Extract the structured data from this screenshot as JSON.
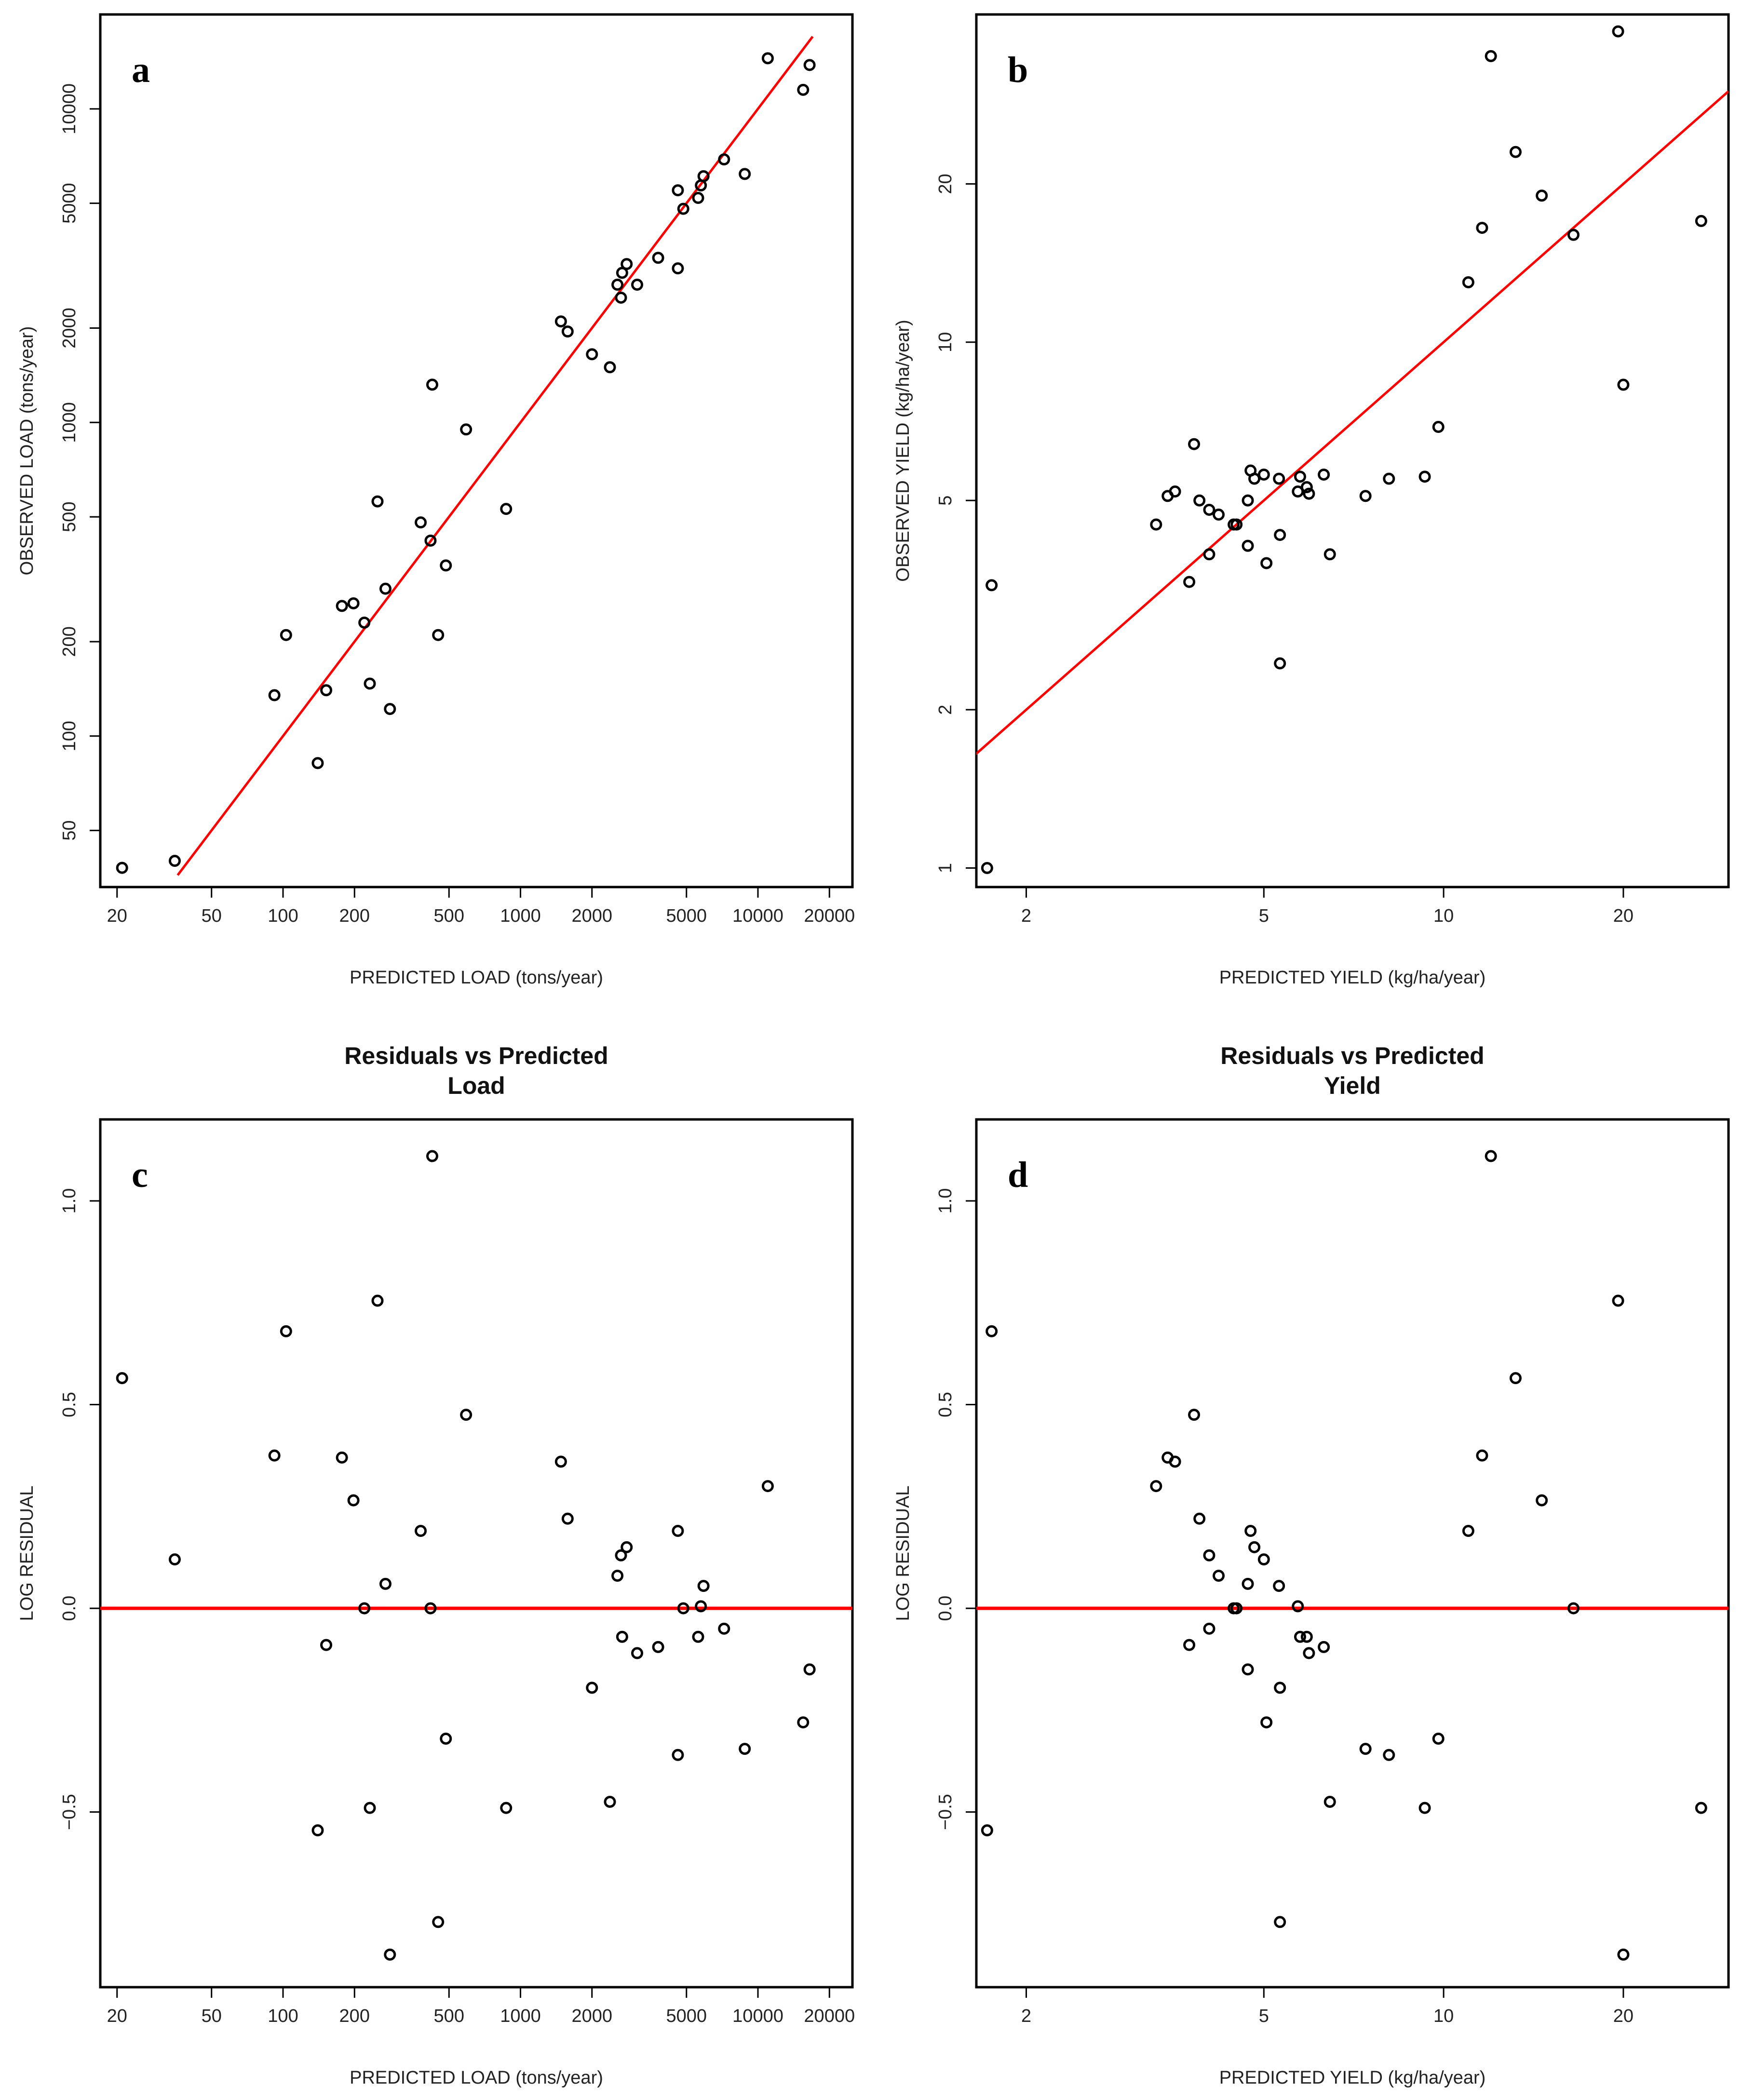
{
  "chart_data": [
    {
      "panel": "a",
      "type": "scatter",
      "xscale": "log",
      "yscale": "log",
      "xlabel": "PREDICTED LOAD (tons/year)",
      "ylabel": "OBSERVED LOAD (tons/year)",
      "xlim": [
        17,
        25000
      ],
      "ylim": [
        33,
        20000
      ],
      "xticks": [
        20,
        50,
        100,
        200,
        500,
        1000,
        2000,
        5000,
        10000,
        20000
      ],
      "yticks": [
        50,
        100,
        200,
        500,
        1000,
        2000,
        5000,
        10000
      ],
      "fit_line": {
        "color": "#ff0000",
        "x": [
          36,
          17000
        ],
        "y": [
          36,
          17000
        ]
      },
      "points": [
        [
          21,
          38
        ],
        [
          35,
          40
        ],
        [
          92,
          135
        ],
        [
          103,
          210
        ],
        [
          140,
          82
        ],
        [
          152,
          140
        ],
        [
          177,
          260
        ],
        [
          198,
          265
        ],
        [
          220,
          230
        ],
        [
          232,
          147
        ],
        [
          250,
          560
        ],
        [
          270,
          295
        ],
        [
          282,
          122
        ],
        [
          380,
          480
        ],
        [
          418,
          420
        ],
        [
          425,
          1320
        ],
        [
          450,
          210
        ],
        [
          485,
          350
        ],
        [
          590,
          950
        ],
        [
          870,
          530
        ],
        [
          1480,
          2100
        ],
        [
          1580,
          1950
        ],
        [
          2000,
          1650
        ],
        [
          2380,
          1500
        ],
        [
          2560,
          2750
        ],
        [
          2650,
          2500
        ],
        [
          2680,
          3000
        ],
        [
          2800,
          3200
        ],
        [
          3100,
          2750
        ],
        [
          3800,
          3350
        ],
        [
          4600,
          3100
        ],
        [
          4600,
          5500
        ],
        [
          4850,
          4800
        ],
        [
          5600,
          5200
        ],
        [
          5750,
          5700
        ],
        [
          5900,
          6100
        ],
        [
          7200,
          6900
        ],
        [
          8800,
          6200
        ],
        [
          11000,
          14500
        ],
        [
          15500,
          11500
        ],
        [
          16500,
          13800
        ]
      ],
      "text": {
        "letter": "a"
      }
    },
    {
      "panel": "b",
      "type": "scatter",
      "xscale": "log",
      "yscale": "log",
      "xlabel": "PREDICTED YIELD (kg/ha/year)",
      "ylabel": "OBSERVED YIELD (kg/ha/year)",
      "xlim": [
        1.65,
        30
      ],
      "ylim": [
        0.92,
        42
      ],
      "xticks": [
        2,
        5,
        10,
        20
      ],
      "yticks": [
        1,
        2,
        5,
        10,
        20
      ],
      "fit_line": {
        "color": "#ff0000",
        "x": [
          1.6,
          30
        ],
        "y": [
          1.6,
          30
        ]
      },
      "points": [
        [
          1.72,
          1.0
        ],
        [
          1.75,
          3.45
        ],
        [
          3.3,
          4.5
        ],
        [
          3.45,
          5.1
        ],
        [
          3.55,
          5.2
        ],
        [
          3.75,
          3.5
        ],
        [
          3.82,
          6.4
        ],
        [
          3.9,
          5.0
        ],
        [
          4.05,
          3.95
        ],
        [
          4.05,
          4.8
        ],
        [
          4.2,
          4.7
        ],
        [
          4.45,
          4.5
        ],
        [
          4.5,
          4.5
        ],
        [
          4.7,
          5.0
        ],
        [
          4.7,
          4.1
        ],
        [
          4.75,
          5.7
        ],
        [
          4.82,
          5.5
        ],
        [
          5.0,
          5.6
        ],
        [
          5.05,
          3.8
        ],
        [
          5.3,
          5.5
        ],
        [
          5.32,
          4.3
        ],
        [
          5.32,
          2.45
        ],
        [
          5.7,
          5.2
        ],
        [
          5.75,
          5.55
        ],
        [
          5.9,
          5.3
        ],
        [
          5.95,
          5.15
        ],
        [
          6.3,
          5.6
        ],
        [
          6.45,
          3.95
        ],
        [
          7.4,
          5.1
        ],
        [
          8.1,
          5.5
        ],
        [
          9.3,
          5.55
        ],
        [
          9.8,
          6.9
        ],
        [
          11.0,
          13.0
        ],
        [
          11.6,
          16.5
        ],
        [
          12.0,
          35.0
        ],
        [
          13.2,
          23.0
        ],
        [
          14.6,
          19.0
        ],
        [
          16.5,
          16.0
        ],
        [
          19.6,
          39.0
        ],
        [
          20.0,
          8.3
        ],
        [
          27.0,
          17.0
        ]
      ],
      "text": {
        "letter": "b"
      }
    },
    {
      "panel": "c",
      "type": "scatter",
      "xscale": "log",
      "yscale": "linear",
      "title": [
        "Residuals vs Predicted",
        "Load"
      ],
      "xlabel": "PREDICTED LOAD (tons/year)",
      "ylabel": "LOG RESIDUAL",
      "xlim": [
        17,
        25000
      ],
      "ylim": [
        -0.93,
        1.2
      ],
      "xticks": [
        20,
        50,
        100,
        200,
        500,
        1000,
        2000,
        5000,
        10000,
        20000
      ],
      "yticks": [
        -0.5,
        0.0,
        0.5,
        1.0
      ],
      "hline": {
        "y": 0.0,
        "color": "#ff0000"
      },
      "points": [
        [
          21,
          0.565
        ],
        [
          35,
          0.12
        ],
        [
          92,
          0.375
        ],
        [
          103,
          0.68
        ],
        [
          140,
          -0.545
        ],
        [
          152,
          -0.09
        ],
        [
          177,
          0.37
        ],
        [
          198,
          0.265
        ],
        [
          220,
          0.0
        ],
        [
          232,
          -0.49
        ],
        [
          250,
          0.755
        ],
        [
          270,
          0.06
        ],
        [
          282,
          -0.85
        ],
        [
          380,
          0.19
        ],
        [
          418,
          0.0
        ],
        [
          425,
          1.11
        ],
        [
          450,
          -0.77
        ],
        [
          485,
          -0.32
        ],
        [
          590,
          0.475
        ],
        [
          870,
          -0.49
        ],
        [
          1480,
          0.36
        ],
        [
          1580,
          0.22
        ],
        [
          2000,
          -0.195
        ],
        [
          2380,
          -0.475
        ],
        [
          2560,
          0.08
        ],
        [
          2650,
          0.13
        ],
        [
          2680,
          -0.07
        ],
        [
          2800,
          0.15
        ],
        [
          3100,
          -0.11
        ],
        [
          3800,
          -0.095
        ],
        [
          4600,
          -0.36
        ],
        [
          4600,
          0.19
        ],
        [
          4850,
          0.0
        ],
        [
          5600,
          -0.07
        ],
        [
          5750,
          0.005
        ],
        [
          5900,
          0.055
        ],
        [
          7200,
          -0.05
        ],
        [
          8800,
          -0.345
        ],
        [
          11000,
          0.3
        ],
        [
          15500,
          -0.28
        ],
        [
          16500,
          -0.15
        ]
      ],
      "text": {
        "letter": "c"
      }
    },
    {
      "panel": "d",
      "type": "scatter",
      "xscale": "log",
      "yscale": "linear",
      "title": [
        "Residuals vs Predicted",
        "Yield"
      ],
      "xlabel": "PREDICTED YIELD (kg/ha/year)",
      "ylabel": "LOG RESIDUAL",
      "xlim": [
        1.65,
        30
      ],
      "ylim": [
        -0.93,
        1.2
      ],
      "xticks": [
        2,
        5,
        10,
        20
      ],
      "yticks": [
        -0.5,
        0.0,
        0.5,
        1.0
      ],
      "hline": {
        "y": 0.0,
        "color": "#ff0000"
      },
      "points": [
        [
          1.72,
          -0.545
        ],
        [
          1.75,
          0.68
        ],
        [
          3.3,
          0.3
        ],
        [
          3.45,
          0.37
        ],
        [
          3.55,
          0.36
        ],
        [
          3.75,
          -0.09
        ],
        [
          3.82,
          0.475
        ],
        [
          3.9,
          0.22
        ],
        [
          4.05,
          -0.05
        ],
        [
          4.05,
          0.13
        ],
        [
          4.2,
          0.08
        ],
        [
          4.45,
          0.0
        ],
        [
          4.5,
          0.0
        ],
        [
          4.7,
          0.06
        ],
        [
          4.7,
          -0.15
        ],
        [
          4.75,
          0.19
        ],
        [
          4.82,
          0.15
        ],
        [
          5.0,
          0.12
        ],
        [
          5.05,
          -0.28
        ],
        [
          5.3,
          0.055
        ],
        [
          5.32,
          -0.195
        ],
        [
          5.32,
          -0.77
        ],
        [
          5.7,
          0.005
        ],
        [
          5.75,
          -0.07
        ],
        [
          5.9,
          -0.07
        ],
        [
          5.95,
          -0.11
        ],
        [
          6.3,
          -0.095
        ],
        [
          6.45,
          -0.475
        ],
        [
          7.4,
          -0.345
        ],
        [
          8.1,
          -0.36
        ],
        [
          9.3,
          -0.49
        ],
        [
          9.8,
          -0.32
        ],
        [
          11.0,
          0.19
        ],
        [
          11.6,
          0.375
        ],
        [
          12.0,
          1.11
        ],
        [
          13.2,
          0.565
        ],
        [
          14.6,
          0.265
        ],
        [
          16.5,
          0.0
        ],
        [
          19.6,
          0.755
        ],
        [
          20.0,
          -0.85
        ],
        [
          27.0,
          -0.49
        ]
      ],
      "text": {
        "letter": "d"
      }
    }
  ]
}
